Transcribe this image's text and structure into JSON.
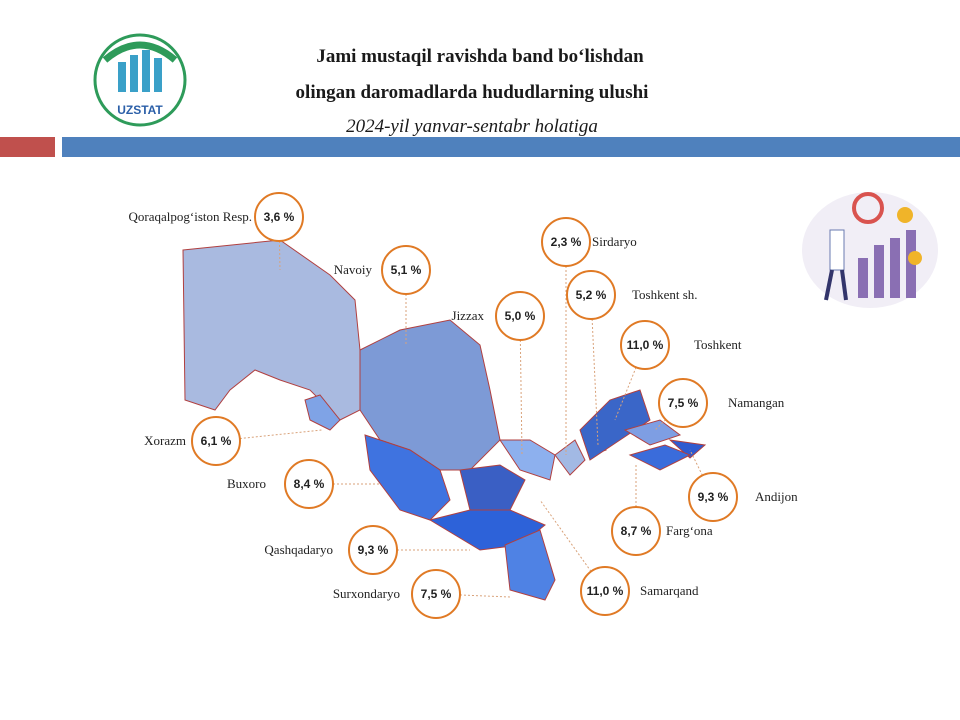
{
  "header": {
    "title_lines": [
      "Jami mustaqil ravishda band bo‘lishdan",
      "olingan daromadlarda hududlarning ulushi"
    ],
    "subtitle": "2024-yil yanvar-sentabr holatiga",
    "logo_text": "UZSTAT"
  },
  "regions": [
    {
      "name": "Qoraqalpog‘iston  Resp.",
      "share": "3,6 %"
    },
    {
      "name": "Navoiy",
      "share": "5,1 %"
    },
    {
      "name": "Jizzax",
      "share": "5,0 %"
    },
    {
      "name": "Sirdaryo",
      "share": "2,3 %"
    },
    {
      "name": "Toshkent  sh.",
      "share": "5,2 %"
    },
    {
      "name": "Toshkent",
      "share": "11,0 %"
    },
    {
      "name": "Namangan",
      "share": "7,5 %"
    },
    {
      "name": "Xorazm",
      "share": "6,1 %"
    },
    {
      "name": "Buxoro",
      "share": "8,4 %"
    },
    {
      "name": "Andijon",
      "share": "9,3 %"
    },
    {
      "name": "Farg‘ona",
      "share": "8,7 %"
    },
    {
      "name": "Qashqadaryo",
      "share": "9,3 %"
    },
    {
      "name": "Surxondaryo",
      "share": "7,5 %"
    },
    {
      "name": "Samarqand",
      "share": "11,0 %"
    }
  ]
}
